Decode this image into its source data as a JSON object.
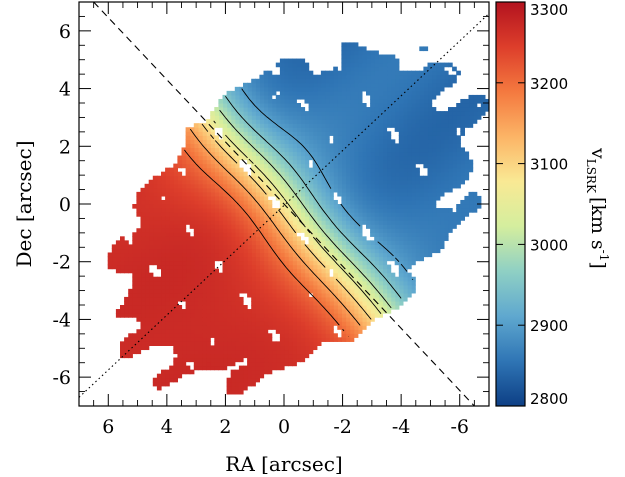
{
  "chart_data": {
    "type": "heatmap",
    "title": "",
    "xlabel": "RA [arcsec]",
    "ylabel": "Dec [arcsec]",
    "xlim": [
      7,
      -7
    ],
    "ylim": [
      -7,
      7
    ],
    "x_ticks": [
      6,
      4,
      2,
      0,
      -2,
      -4,
      -6
    ],
    "x_tick_labels": [
      "6",
      "4",
      "2",
      "0",
      "-2",
      "-4",
      "-6"
    ],
    "y_ticks": [
      6,
      4,
      2,
      0,
      -2,
      -4,
      -6
    ],
    "y_tick_labels": [
      "6",
      "4",
      "2",
      "0",
      "-2",
      "-4",
      "-6"
    ],
    "colorbar": {
      "label_main": "v",
      "label_sub": "LSRK",
      "label_unit": "[km s",
      "label_exp": "-1",
      "label_close": "]",
      "range": [
        2800,
        3300
      ],
      "ticks": [
        2800,
        2900,
        3000,
        3100,
        3200,
        3300
      ],
      "tick_labels": [
        "2800",
        "2900",
        "3000",
        "3100",
        "3200",
        "3300"
      ],
      "colormap": "Spectral (blue low, red high)",
      "colors": [
        "#0d3f85",
        "#2f75b5",
        "#5fa8cf",
        "#8fd0c4",
        "#d4ee9e",
        "#f9e994",
        "#fcb466",
        "#f4793f",
        "#dd3e2b",
        "#b3131f"
      ]
    },
    "systemic_velocity_approx": 3060,
    "kinematic_axes": [
      {
        "style": "dashed",
        "from": [
          6.5,
          7
        ],
        "to": [
          -6.5,
          -7
        ]
      },
      {
        "style": "dotted",
        "from": [
          7,
          -6.7
        ],
        "to": [
          -7,
          6.6
        ]
      }
    ],
    "velocity_field_description": "Redshifted emission (~3250-3300 km/s) in the south-east, blueshifted emission (~2880-2920 km/s) in the north-west, steep gradient along the dotted axis through the centre, black iso-velocity contours overlaid."
  }
}
